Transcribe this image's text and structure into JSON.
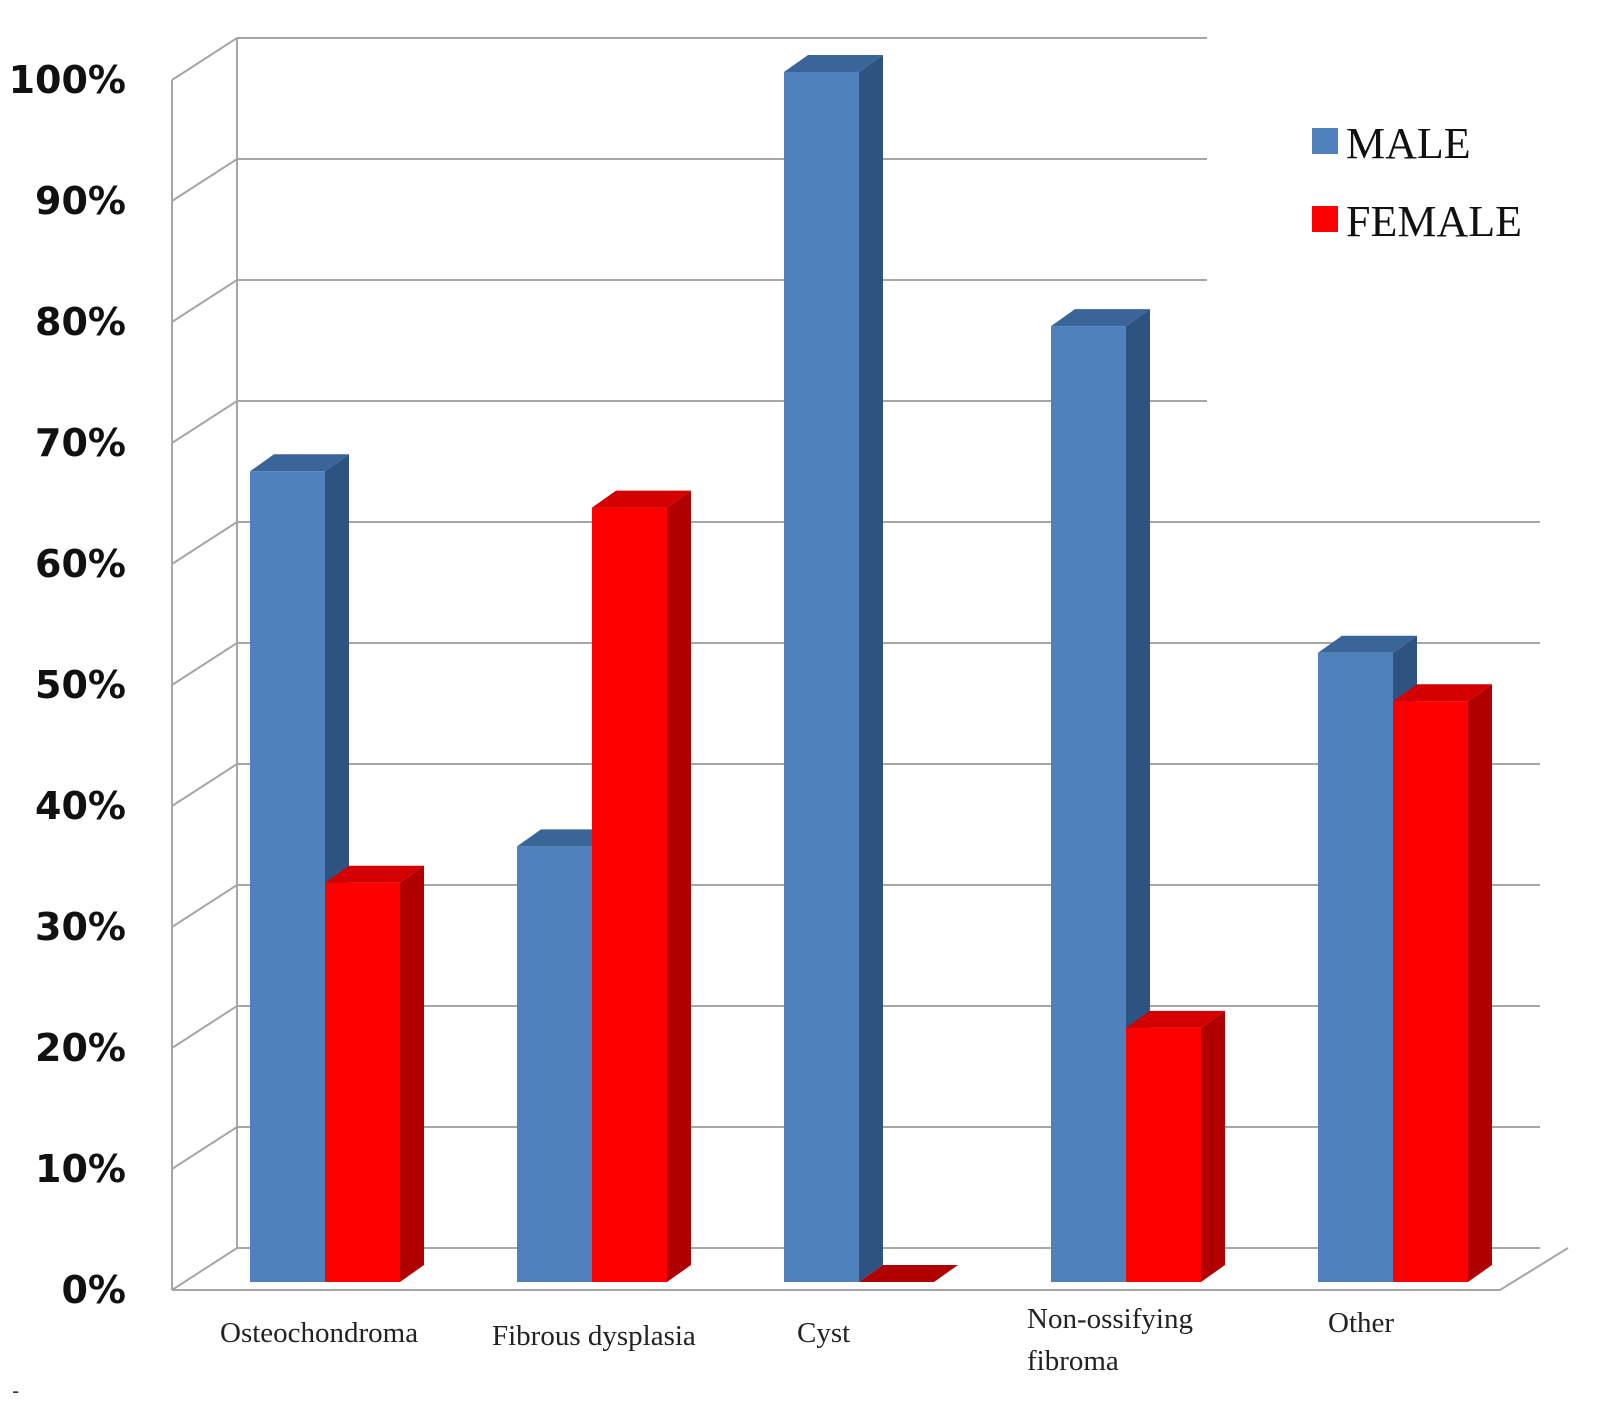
{
  "chart_data": {
    "type": "bar",
    "categories": [
      [
        "Osteochondroma"
      ],
      [
        "Fibrous dysplasia"
      ],
      [
        "Cyst"
      ],
      [
        "Non-ossifying",
        "fibroma"
      ],
      [
        "Other"
      ]
    ],
    "series": [
      {
        "name": "MALE",
        "color": "#4f81bd",
        "side": "#2f5380",
        "top": "#3a6599",
        "values": [
          67,
          36,
          100,
          79,
          52
        ]
      },
      {
        "name": "FEMALE",
        "color": "#ff0000",
        "side": "#b00000",
        "top": "#d40000",
        "values": [
          33,
          64,
          0,
          21,
          48
        ]
      }
    ],
    "ylim": [
      0,
      100
    ],
    "yticks": [
      "0%",
      "10%",
      "20%",
      "30%",
      "40%",
      "50%",
      "60%",
      "70%",
      "80%",
      "90%",
      "100%"
    ],
    "title": "",
    "xlabel": "",
    "ylabel": "",
    "grid": true,
    "legend_position": "top-right"
  },
  "footnote": "-"
}
